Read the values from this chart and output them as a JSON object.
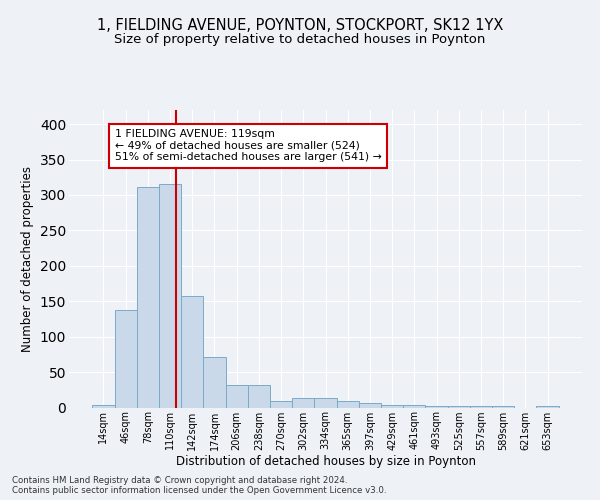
{
  "title_line1": "1, FIELDING AVENUE, POYNTON, STOCKPORT, SK12 1YX",
  "title_line2": "Size of property relative to detached houses in Poynton",
  "xlabel": "Distribution of detached houses by size in Poynton",
  "ylabel": "Number of detached properties",
  "bar_labels": [
    "14sqm",
    "46sqm",
    "78sqm",
    "110sqm",
    "142sqm",
    "174sqm",
    "206sqm",
    "238sqm",
    "270sqm",
    "302sqm",
    "334sqm",
    "365sqm",
    "397sqm",
    "429sqm",
    "461sqm",
    "493sqm",
    "525sqm",
    "557sqm",
    "589sqm",
    "621sqm",
    "653sqm"
  ],
  "bar_heights": [
    4,
    137,
    311,
    316,
    157,
    71,
    32,
    32,
    9,
    13,
    13,
    9,
    7,
    4,
    4,
    2,
    2,
    2,
    2,
    0,
    2
  ],
  "bar_color": "#c9d9ea",
  "bar_edgecolor": "#7aaac8",
  "vline_color": "#cc0000",
  "annotation_text": "1 FIELDING AVENUE: 119sqm\n← 49% of detached houses are smaller (524)\n51% of semi-detached houses are larger (541) →",
  "annotation_box_color": "white",
  "annotation_box_edgecolor": "#cc0000",
  "ylim": [
    0,
    420
  ],
  "yticks": [
    0,
    50,
    100,
    150,
    200,
    250,
    300,
    350,
    400
  ],
  "background_color": "#eef2f7",
  "plot_background": "#eef2f7",
  "footer_text": "Contains HM Land Registry data © Crown copyright and database right 2024.\nContains public sector information licensed under the Open Government Licence v3.0.",
  "title_fontsize": 10.5,
  "subtitle_fontsize": 9.5,
  "tick_fontsize": 7,
  "ylabel_fontsize": 8.5,
  "xlabel_fontsize": 8.5,
  "footer_fontsize": 6.2
}
